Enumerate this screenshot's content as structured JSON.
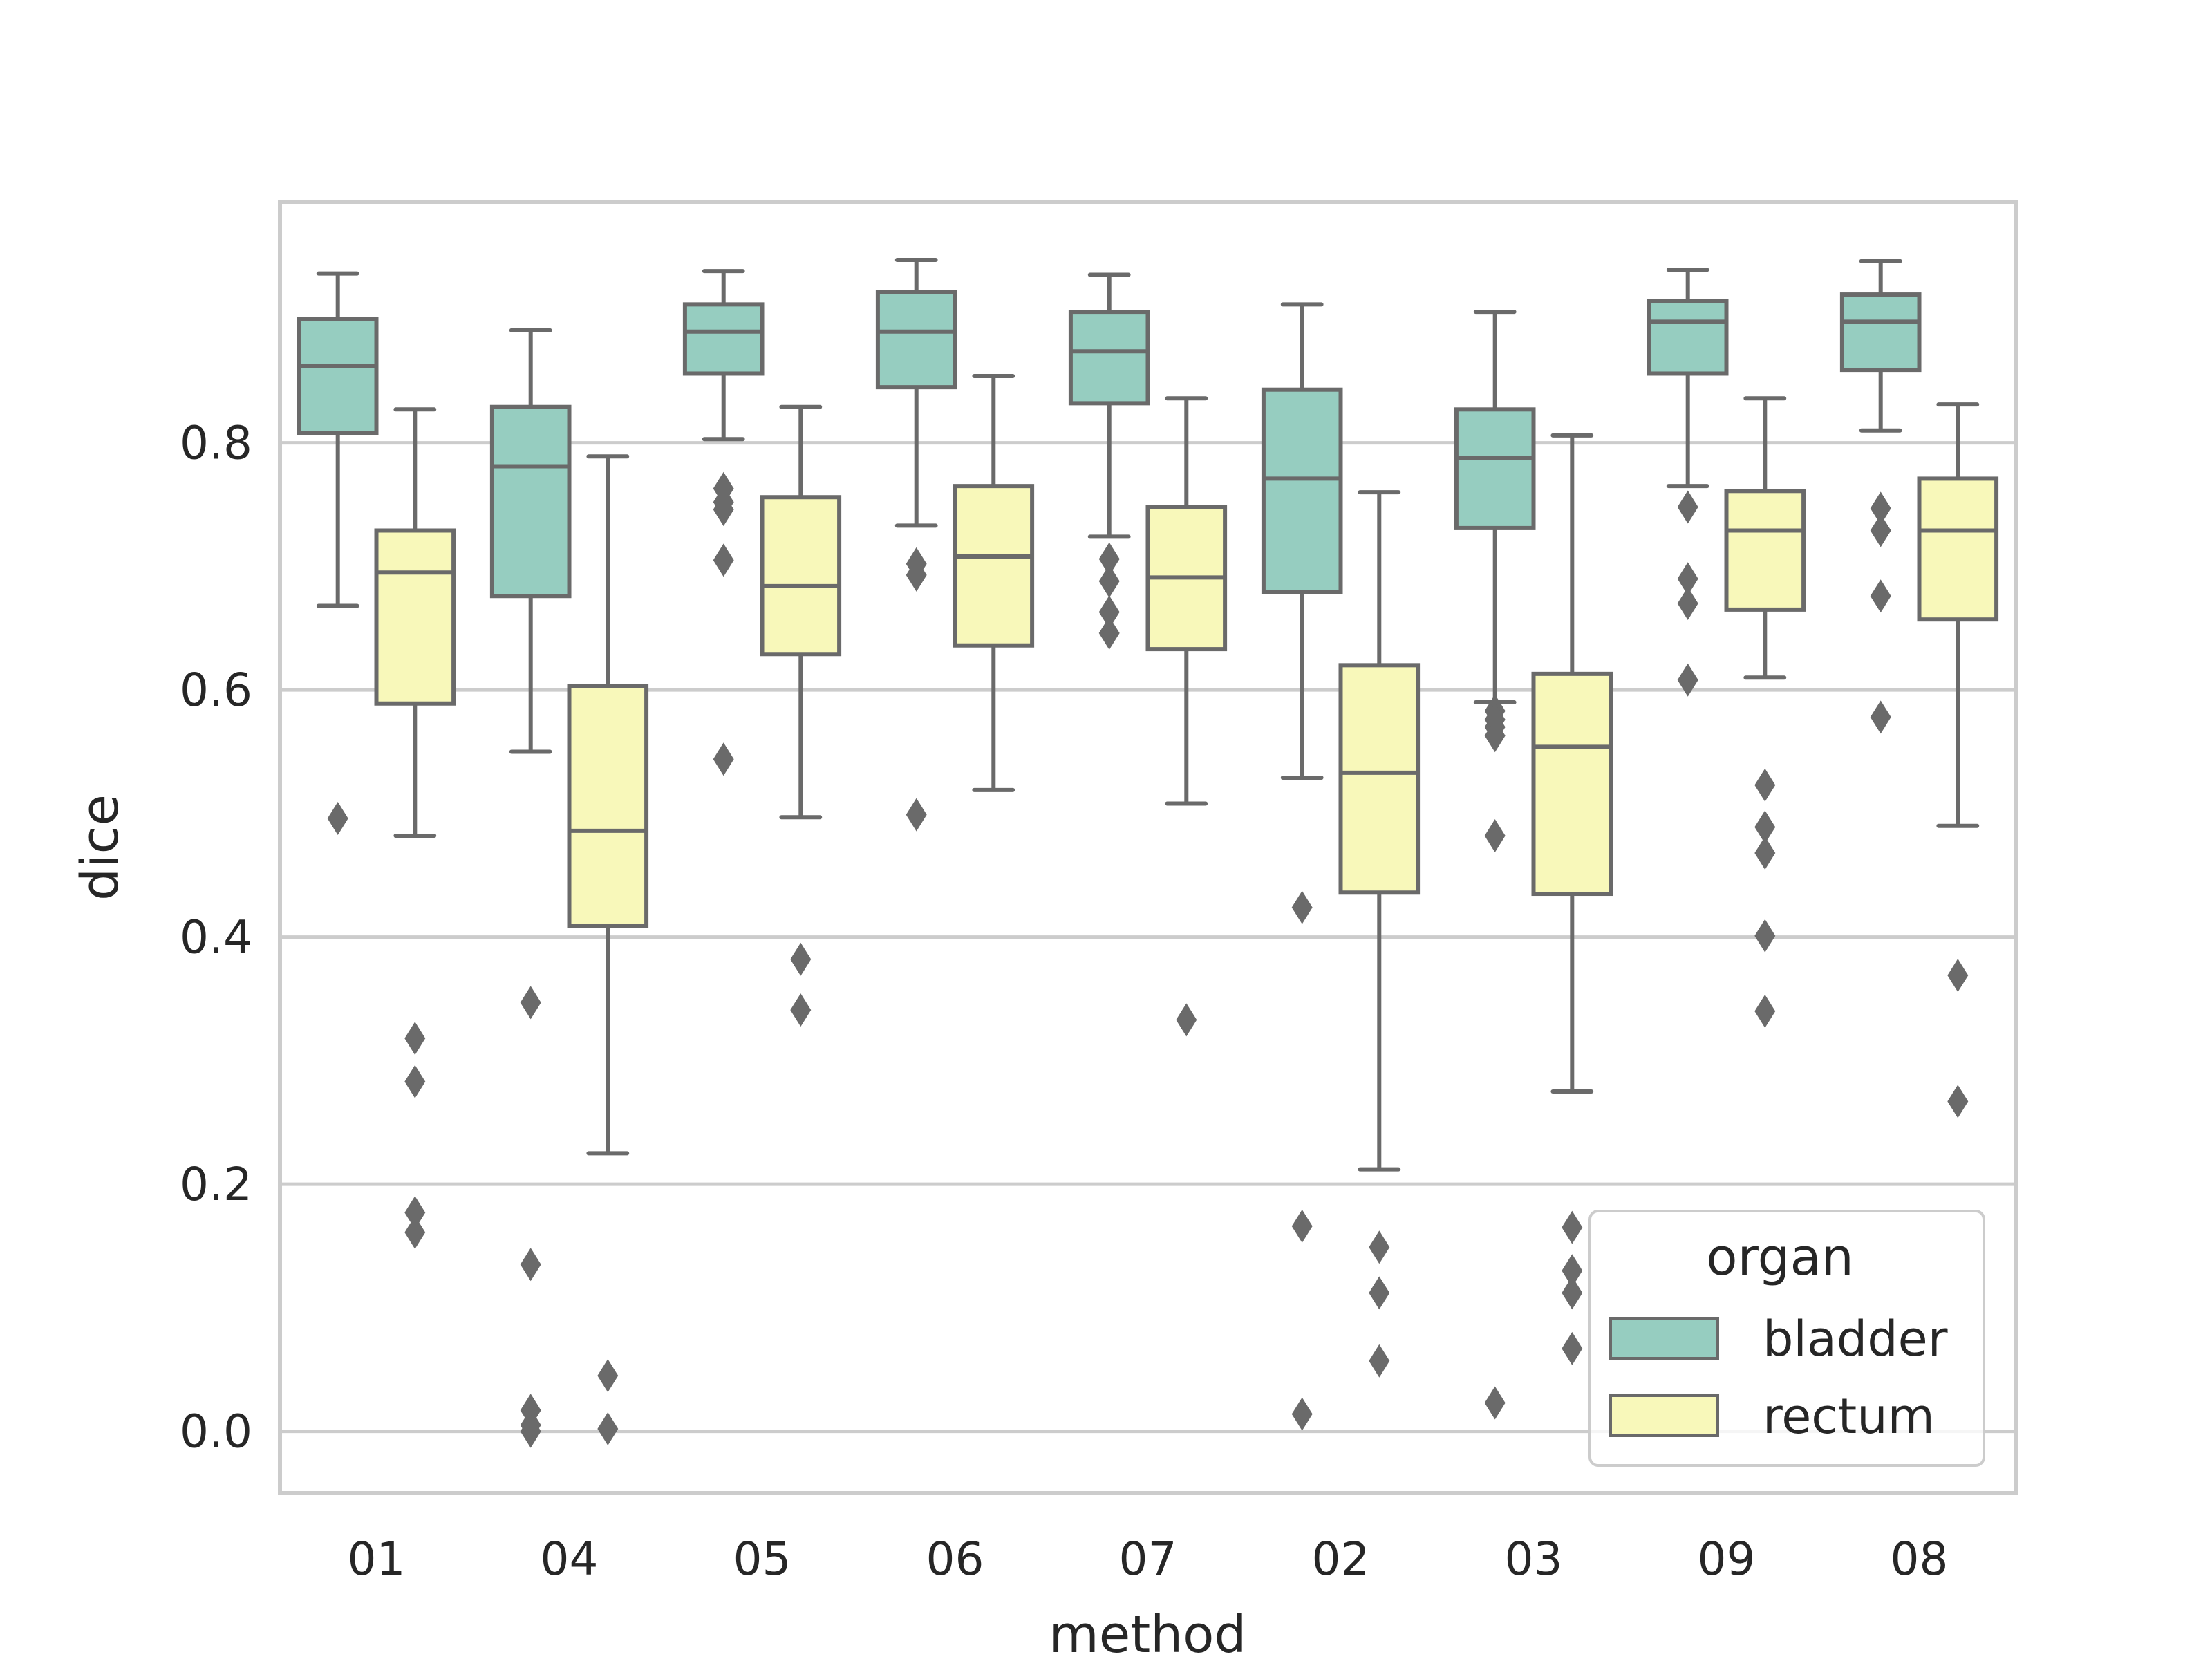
{
  "chart_data": {
    "type": "box",
    "xlabel": "method",
    "ylabel": "dice",
    "categories": [
      "01",
      "04",
      "05",
      "06",
      "07",
      "02",
      "03",
      "09",
      "08"
    ],
    "ylim": [
      -0.05,
      0.995
    ],
    "yticks": [
      "0.0",
      "0.2",
      "0.4",
      "0.6",
      "0.8"
    ],
    "grid": true,
    "legend": {
      "title": "organ",
      "placement": "lower-right"
    },
    "series": [
      {
        "name": "bladder",
        "color": "#96cdc0",
        "boxes": [
          {
            "category": "01",
            "whisker_low": 0.668,
            "q1": 0.808,
            "median": 0.862,
            "q3": 0.9,
            "whisker_high": 0.937,
            "outliers": [
              0.496
            ]
          },
          {
            "category": "04",
            "whisker_low": 0.55,
            "q1": 0.676,
            "median": 0.781,
            "q3": 0.829,
            "whisker_high": 0.891,
            "outliers": [
              0.347,
              0.135,
              0.017,
              0.005,
              0.0
            ]
          },
          {
            "category": "05",
            "whisker_low": 0.803,
            "q1": 0.856,
            "median": 0.89,
            "q3": 0.912,
            "whisker_high": 0.939,
            "outliers": [
              0.763,
              0.752,
              0.746,
              0.705,
              0.544
            ]
          },
          {
            "category": "06",
            "whisker_low": 0.733,
            "q1": 0.845,
            "median": 0.89,
            "q3": 0.922,
            "whisker_high": 0.948,
            "outliers": [
              0.702,
              0.693,
              0.499
            ]
          },
          {
            "category": "07",
            "whisker_low": 0.724,
            "q1": 0.832,
            "median": 0.874,
            "q3": 0.906,
            "whisker_high": 0.936,
            "outliers": [
              0.706,
              0.688,
              0.663,
              0.646
            ]
          },
          {
            "category": "02",
            "whisker_low": 0.529,
            "q1": 0.679,
            "median": 0.771,
            "q3": 0.843,
            "whisker_high": 0.912,
            "outliers": [
              0.424,
              0.166,
              0.014
            ]
          },
          {
            "category": "03",
            "whisker_low": 0.59,
            "q1": 0.731,
            "median": 0.788,
            "q3": 0.827,
            "whisker_high": 0.906,
            "outliers": [
              0.583,
              0.576,
              0.57,
              0.563,
              0.482,
              0.023
            ]
          },
          {
            "category": "09",
            "whisker_low": 0.765,
            "q1": 0.856,
            "median": 0.898,
            "q3": 0.915,
            "whisker_high": 0.94,
            "outliers": [
              0.748,
              0.69,
              0.67,
              0.608
            ]
          },
          {
            "category": "08",
            "whisker_low": 0.81,
            "q1": 0.859,
            "median": 0.898,
            "q3": 0.92,
            "whisker_high": 0.947,
            "outliers": [
              0.747,
              0.729,
              0.676,
              0.578
            ]
          }
        ]
      },
      {
        "name": "rectum",
        "color": "#f8f8ba",
        "boxes": [
          {
            "category": "01",
            "whisker_low": 0.482,
            "q1": 0.589,
            "median": 0.695,
            "q3": 0.729,
            "whisker_high": 0.827,
            "outliers": [
              0.318,
              0.283,
              0.177,
              0.161
            ]
          },
          {
            "category": "04",
            "whisker_low": 0.225,
            "q1": 0.409,
            "median": 0.486,
            "q3": 0.603,
            "whisker_high": 0.789,
            "outliers": [
              0.045,
              0.002
            ]
          },
          {
            "category": "05",
            "whisker_low": 0.497,
            "q1": 0.629,
            "median": 0.684,
            "q3": 0.756,
            "whisker_high": 0.829,
            "outliers": [
              0.382,
              0.341
            ]
          },
          {
            "category": "06",
            "whisker_low": 0.519,
            "q1": 0.636,
            "median": 0.708,
            "q3": 0.765,
            "whisker_high": 0.854,
            "outliers": []
          },
          {
            "category": "07",
            "whisker_low": 0.508,
            "q1": 0.633,
            "median": 0.691,
            "q3": 0.748,
            "whisker_high": 0.836,
            "outliers": [
              0.333
            ]
          },
          {
            "category": "02",
            "whisker_low": 0.212,
            "q1": 0.436,
            "median": 0.533,
            "q3": 0.62,
            "whisker_high": 0.76,
            "outliers": [
              0.149,
              0.112,
              0.057
            ]
          },
          {
            "category": "03",
            "whisker_low": 0.275,
            "q1": 0.435,
            "median": 0.554,
            "q3": 0.613,
            "whisker_high": 0.806,
            "outliers": [
              0.165,
              0.13,
              0.112,
              0.067
            ]
          },
          {
            "category": "09",
            "whisker_low": 0.61,
            "q1": 0.665,
            "median": 0.729,
            "q3": 0.761,
            "whisker_high": 0.836,
            "outliers": [
              0.523,
              0.489,
              0.468,
              0.401,
              0.34
            ]
          },
          {
            "category": "08",
            "whisker_low": 0.49,
            "q1": 0.657,
            "median": 0.729,
            "q3": 0.771,
            "whisker_high": 0.831,
            "outliers": [
              0.369,
              0.267
            ]
          }
        ]
      }
    ]
  },
  "colors": {
    "frame": "#cccccc",
    "grid": "#cccccc",
    "box_edge": "#6a6a6a"
  }
}
